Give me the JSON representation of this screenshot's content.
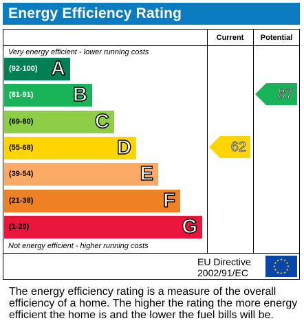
{
  "title": "Energy Efficiency Rating",
  "columns": {
    "current": "Current",
    "potential": "Potential"
  },
  "notes": {
    "top": "Very energy efficient - lower running costs",
    "bottom": "Not energy efficient - higher running costs"
  },
  "footer": {
    "directive_line1": "EU Directive",
    "directive_line2": "2002/91/EC"
  },
  "description": "The energy efficiency rating is a measure of the overall efficiency of a home. The higher the rating the more energy efficient the home is and the lower the fuel bills will be.",
  "colors": {
    "title_bar": "#0c7cc1",
    "flag": "#0a46a8",
    "flag_stars": "#ffdd00"
  },
  "chart_data": {
    "type": "bar",
    "title": "Energy Efficiency Rating",
    "bands": [
      {
        "letter": "A",
        "range": "(92-100)",
        "color": "#008054",
        "range_color": "#ffffff"
      },
      {
        "letter": "B",
        "range": "(81-91)",
        "color": "#19b459",
        "range_color": "#ffffff"
      },
      {
        "letter": "C",
        "range": "(69-80)",
        "color": "#8dce46",
        "range_color": "#000000"
      },
      {
        "letter": "D",
        "range": "(55-68)",
        "color": "#ffd500",
        "range_color": "#000000"
      },
      {
        "letter": "E",
        "range": "(39-54)",
        "color": "#fcaa65",
        "range_color": "#000000"
      },
      {
        "letter": "F",
        "range": "(21-38)",
        "color": "#ef8023",
        "range_color": "#000000"
      },
      {
        "letter": "G",
        "range": "(1-20)",
        "color": "#e9153b",
        "range_color": "#000000"
      }
    ],
    "ratings": {
      "current": {
        "value": 62,
        "band": "D",
        "color": "#ffd500"
      },
      "potential": {
        "value": 87,
        "band": "B",
        "color": "#19b459"
      }
    }
  }
}
